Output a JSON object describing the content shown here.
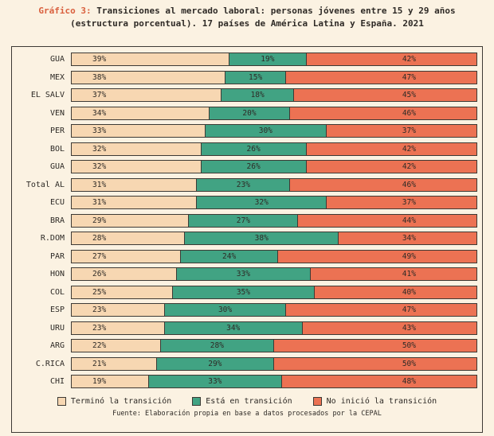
{
  "title": {
    "prefix": "Gráfico 3:",
    "line1_rest": " Transiciones al mercado laboral: personas jóvenes entre 15 y 29 años",
    "line2": "(estructura porcentual). 17 países de América Latina y España. 2021"
  },
  "legend": [
    {
      "label": "Terminó la transición",
      "color": "#f7d7b2"
    },
    {
      "label": "Está en transición",
      "color": "#41a383"
    },
    {
      "label": "No inició la transición",
      "color": "#ec7253"
    }
  ],
  "source": "Fuente: Elaboración propia en base a datos procesados por la CEPAL",
  "chart_data": {
    "type": "bar",
    "orientation": "horizontal",
    "stacked": true,
    "value_format": "percent",
    "xlim": [
      0,
      100
    ],
    "title": "Gráfico 3: Transiciones al mercado laboral: personas jóvenes entre 15 y 29 años (estructura porcentual). 17 países de América Latina y España. 2021",
    "categories": [
      "GUA",
      "MEX",
      "EL SALV",
      "VEN",
      "PER",
      "BOL",
      "GUA",
      "Total AL",
      "ECU",
      "BRA",
      "R.DOM",
      "PAR",
      "HON",
      "COL",
      "ESP",
      "URU",
      "ARG",
      "C.RICA",
      "CHI"
    ],
    "series": [
      {
        "name": "Terminó la transición",
        "color": "#f7d7b2",
        "values": [
          39,
          38,
          37,
          34,
          33,
          32,
          32,
          31,
          31,
          29,
          28,
          27,
          26,
          25,
          23,
          23,
          22,
          21,
          19
        ]
      },
      {
        "name": "Está en transición",
        "color": "#41a383",
        "values": [
          19,
          15,
          18,
          20,
          30,
          26,
          26,
          23,
          32,
          27,
          38,
          24,
          33,
          35,
          30,
          34,
          28,
          29,
          33
        ]
      },
      {
        "name": "No inició la transición",
        "color": "#ec7253",
        "values": [
          42,
          47,
          45,
          46,
          37,
          42,
          42,
          46,
          37,
          44,
          34,
          49,
          41,
          40,
          47,
          43,
          50,
          50,
          48
        ]
      }
    ]
  }
}
